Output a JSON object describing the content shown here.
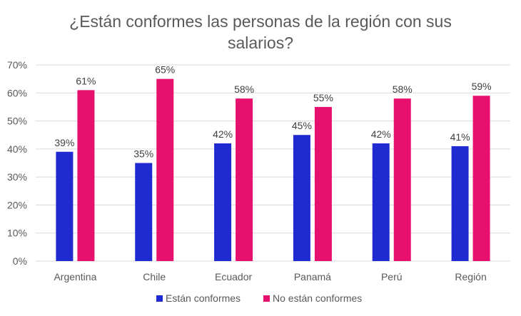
{
  "chart_data": {
    "type": "bar",
    "title_lines": [
      "¿Están conformes las personas de la región con sus",
      "salarios?"
    ],
    "categories": [
      "Argentina",
      "Chile",
      "Ecuador",
      "Panamá",
      "Perú",
      "Región"
    ],
    "series": [
      {
        "name": "Están conformes",
        "color": "#1f2bd1",
        "values": [
          39,
          35,
          42,
          45,
          42,
          41
        ]
      },
      {
        "name": "No están conformes",
        "color": "#e8106e",
        "values": [
          61,
          65,
          58,
          55,
          58,
          59
        ]
      }
    ],
    "y_ticks": [
      "0%",
      "10%",
      "20%",
      "30%",
      "40%",
      "50%",
      "60%",
      "70%"
    ],
    "ylim": [
      0,
      70
    ],
    "value_suffix": "%",
    "grid": true,
    "legend_position": "bottom"
  }
}
